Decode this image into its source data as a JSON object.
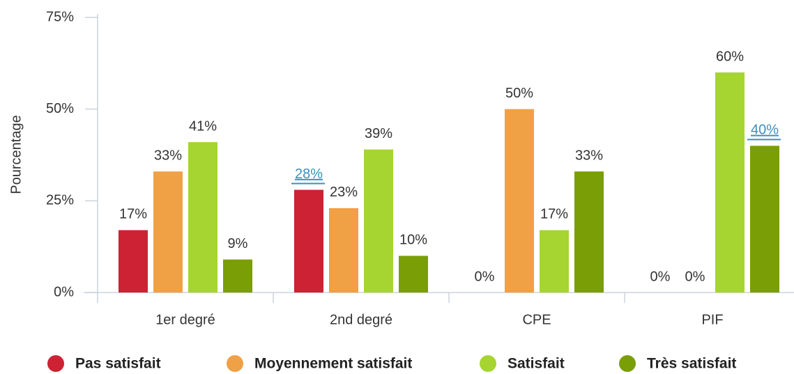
{
  "chart_data": {
    "type": "bar",
    "ylabel": "Pourcentage",
    "categories": [
      "1er degré",
      "2nd degré",
      "CPE",
      "PIF"
    ],
    "series": [
      {
        "name": "Pas satisfait",
        "color": "#cc2233",
        "values": [
          17,
          28,
          0,
          0
        ],
        "value_labels": [
          "17%",
          "28%",
          "0%",
          "0%"
        ]
      },
      {
        "name": "Moyennement satisfait",
        "color": "#f0a045",
        "values": [
          33,
          23,
          50,
          0
        ],
        "value_labels": [
          "33%",
          "23%",
          "50%",
          "0%"
        ]
      },
      {
        "name": "Satisfait",
        "color": "#a6d531",
        "values": [
          41,
          39,
          17,
          60
        ],
        "value_labels": [
          "41%",
          "39%",
          "17%",
          "60%"
        ]
      },
      {
        "name": "Très satisfait",
        "color": "#7a9e06",
        "values": [
          9,
          10,
          33,
          40
        ],
        "value_labels": [
          "9%",
          "10%",
          "33%",
          "40%"
        ]
      }
    ],
    "ylim": [
      0,
      75
    ],
    "yticks": [
      {
        "value": 0,
        "label": "0%"
      },
      {
        "value": 25,
        "label": "25%"
      },
      {
        "value": 50,
        "label": "50%"
      },
      {
        "value": 75,
        "label": "75%"
      }
    ],
    "highlight_color": "#3a8fc4",
    "highlighted": [
      {
        "series": 0,
        "index": 1
      },
      {
        "series": 3,
        "index": 3
      }
    ],
    "legend": "bottom"
  }
}
